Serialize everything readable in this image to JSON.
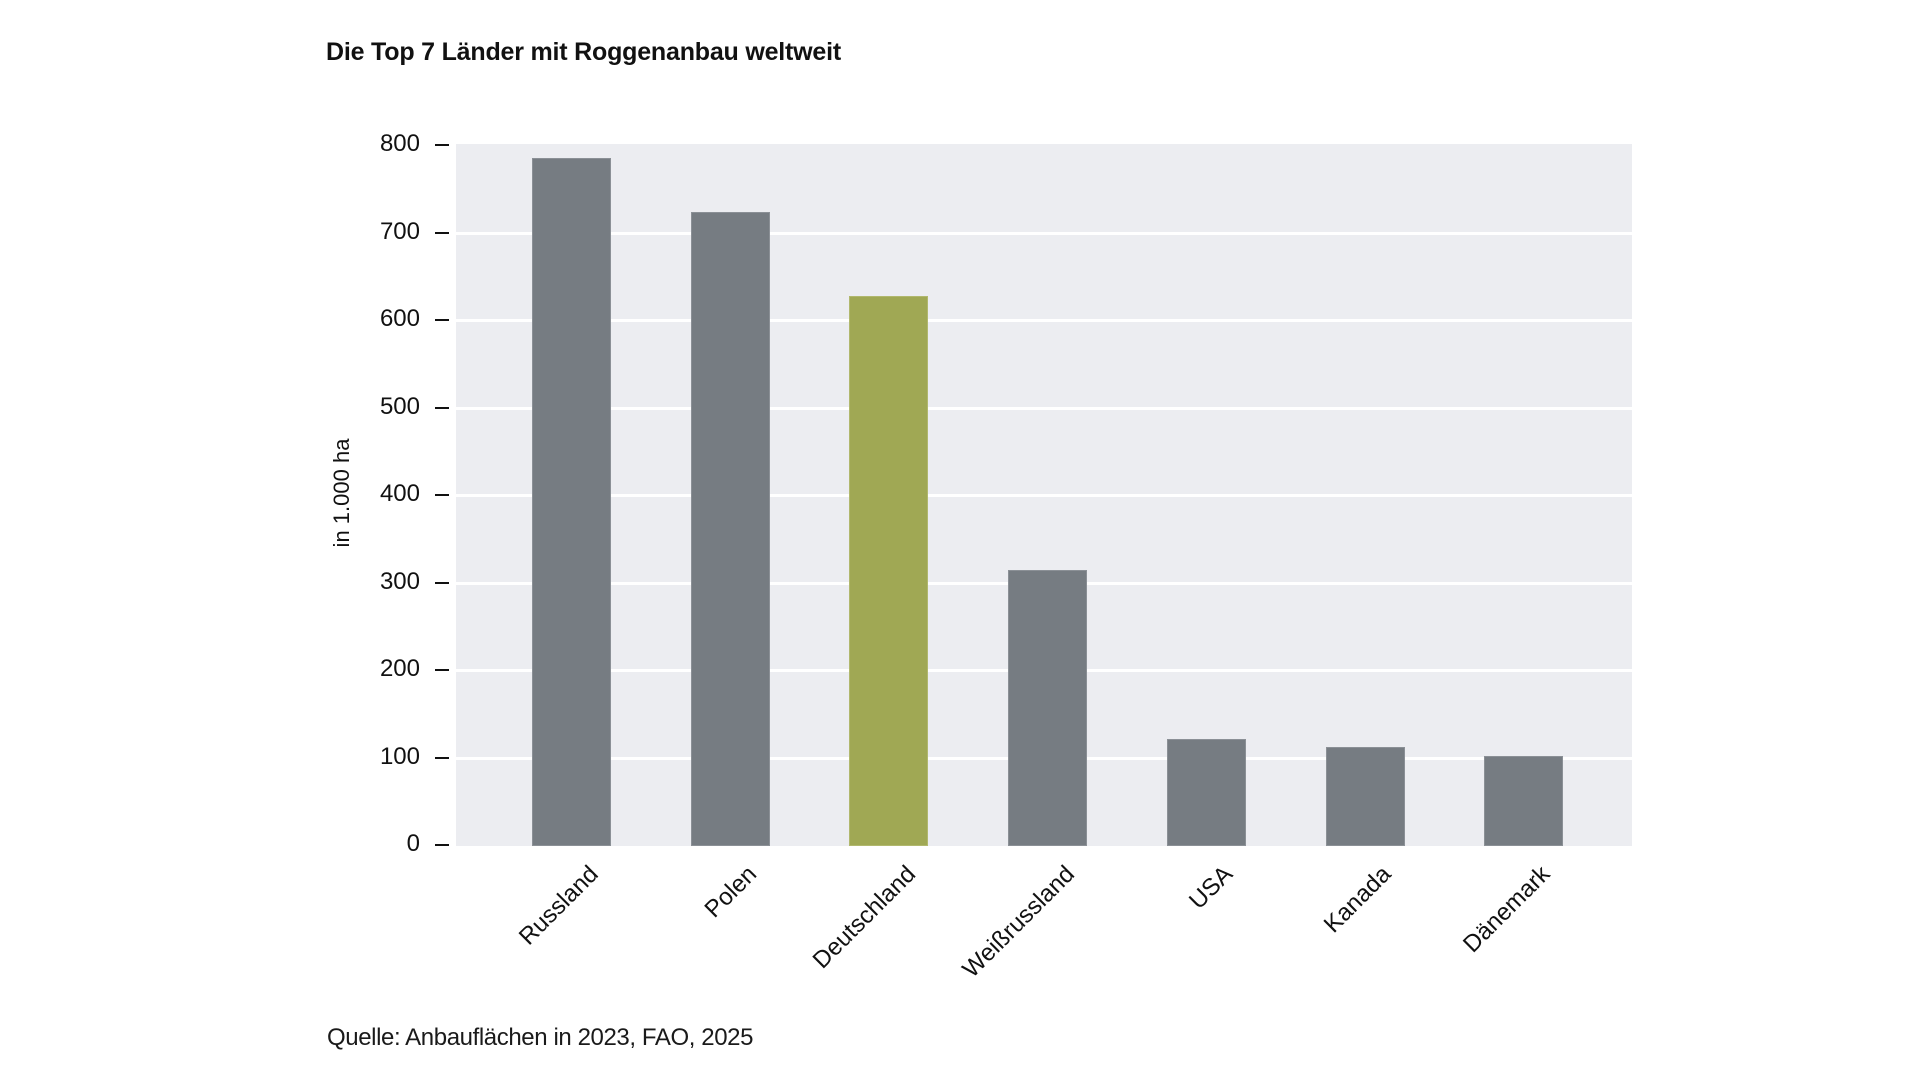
{
  "title": "Die Top 7 Länder mit Roggenanbau weltweit",
  "source": "Quelle: Anbauflächen in 2023, FAO, 2025",
  "colors": {
    "bar_default": "#767c82",
    "bar_highlight": "#a0a854",
    "plot_background": "#ecedf1",
    "gridline": "#ffffff"
  },
  "chart_data": {
    "type": "bar",
    "title": "Die Top 7 Länder mit Roggenanbau weltweit",
    "xlabel": "",
    "ylabel": "in 1.000 ha",
    "categories": [
      "Russland",
      "Polen",
      "Deutschland",
      "Weißrussland",
      "USA",
      "Kanada",
      "Dänemark"
    ],
    "values": [
      785,
      724,
      628,
      314,
      121,
      112,
      102
    ],
    "highlight": "Deutschland",
    "ylim": [
      0,
      800
    ],
    "yticks": [
      0,
      100,
      200,
      300,
      400,
      500,
      600,
      700,
      800
    ],
    "ytick_labels": [
      "0",
      "100",
      "200",
      "300",
      "400",
      "500",
      "600",
      "700",
      "800"
    ],
    "grid": true,
    "legend": null,
    "annotation": "Quelle: Anbauflächen in 2023, FAO, 2025"
  }
}
